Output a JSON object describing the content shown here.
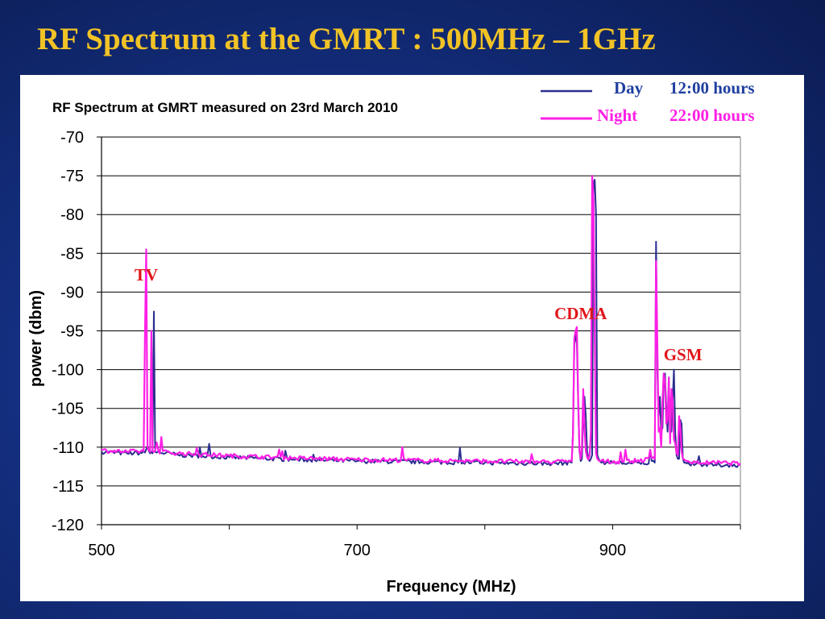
{
  "slide": {
    "title": "RF Spectrum at the GMRT : 500MHz – 1GHz"
  },
  "colors": {
    "background": "#142f80",
    "title": "#f2c326",
    "day": "#2b2f8f",
    "night": "#ff1fe6",
    "annotation": "#e0161b"
  },
  "chart_data": {
    "type": "line",
    "title": "RF Spectrum at GMRT measured on 23rd March 2010",
    "xlabel": "Frequency (MHz)",
    "ylabel": "power (dbm)",
    "xlim": [
      500,
      1000
    ],
    "ylim": [
      -120,
      -70
    ],
    "xticks": [
      500,
      700,
      900
    ],
    "yticks": [
      -70,
      -75,
      -80,
      -85,
      -90,
      -95,
      -100,
      -105,
      -110,
      -115,
      -120
    ],
    "grid": "horizontal",
    "legend": [
      {
        "name": "Day",
        "time": "12:00 hours"
      },
      {
        "name": "Night",
        "time": "22:00 hours"
      }
    ],
    "annotations": [
      {
        "text": "TV",
        "x": 535,
        "y": -88.5
      },
      {
        "text": "CDMA",
        "x": 875,
        "y": -93.5
      },
      {
        "text": "GSM",
        "x": 955,
        "y": -98.8
      }
    ],
    "series": [
      {
        "name": "Day",
        "x": [
          500,
          520,
          534,
          535,
          536,
          537,
          538,
          539,
          540,
          541,
          542,
          560,
          600,
          650,
          700,
          750,
          800,
          850,
          868,
          869,
          870,
          871,
          872,
          873,
          874,
          875,
          876,
          877,
          878,
          879,
          880,
          881,
          882,
          883,
          884,
          885,
          886,
          887,
          888,
          889,
          890,
          895,
          900,
          915,
          933,
          934,
          935,
          936,
          937,
          938,
          939,
          940,
          941,
          942,
          943,
          944,
          945,
          946,
          947,
          948,
          949,
          950,
          951,
          952,
          953,
          954,
          955,
          956,
          957,
          958,
          959,
          960,
          965,
          980,
          1000
        ],
        "y": [
          -110.6,
          -110.8,
          -110.7,
          -110.3,
          -109.8,
          -110.5,
          -110.8,
          -110.6,
          -110.8,
          -92.5,
          -110.6,
          -111.0,
          -111.3,
          -111.6,
          -111.8,
          -111.9,
          -112.0,
          -112.1,
          -112.0,
          -108.0,
          -97.0,
          -95.5,
          -96.5,
          -104.0,
          -110.5,
          -111.8,
          -111.5,
          -106.0,
          -103.5,
          -106.0,
          -110.5,
          -111.5,
          -111.8,
          -111.5,
          -111.0,
          -76.0,
          -75.5,
          -80.0,
          -111.0,
          -111.5,
          -111.8,
          -112.0,
          -112.0,
          -112.1,
          -112.0,
          -83.5,
          -100.0,
          -106.0,
          -103.5,
          -108.0,
          -107.5,
          -101.0,
          -100.5,
          -105.0,
          -108.0,
          -103.0,
          -105.0,
          -108.0,
          -104.0,
          -100.0,
          -108.0,
          -111.0,
          -111.5,
          -111.5,
          -106.5,
          -107.0,
          -111.5,
          -112.0,
          -112.0,
          -112.1,
          -112.0,
          -112.2,
          -112.2,
          -112.3,
          -112.3
        ]
      },
      {
        "name": "Night",
        "x": [
          500,
          520,
          533,
          534,
          535,
          536,
          537,
          538,
          539,
          540,
          541,
          542,
          560,
          600,
          650,
          700,
          750,
          800,
          850,
          868,
          869,
          870,
          871,
          872,
          873,
          874,
          875,
          876,
          877,
          878,
          879,
          880,
          881,
          882,
          883,
          884,
          885,
          886,
          887,
          888,
          889,
          890,
          895,
          900,
          915,
          933,
          934,
          935,
          936,
          937,
          938,
          939,
          940,
          941,
          942,
          943,
          944,
          945,
          946,
          947,
          948,
          949,
          950,
          951,
          952,
          953,
          954,
          955,
          956,
          957,
          958,
          959,
          960,
          965,
          980,
          1000
        ],
        "y": [
          -110.4,
          -110.6,
          -110.5,
          -96.0,
          -84.5,
          -110.0,
          -110.4,
          -110.6,
          -95.0,
          -110.5,
          -110.6,
          -110.5,
          -110.8,
          -111.1,
          -111.4,
          -111.6,
          -111.7,
          -111.8,
          -111.9,
          -111.8,
          -108.5,
          -96.0,
          -95.0,
          -94.5,
          -103.5,
          -110.3,
          -111.5,
          -110.0,
          -102.5,
          -107.5,
          -110.5,
          -111.3,
          -111.6,
          -111.0,
          -108.0,
          -75.0,
          -78.0,
          -96.0,
          -110.8,
          -111.5,
          -111.7,
          -111.8,
          -111.8,
          -111.9,
          -111.8,
          -111.5,
          -86.0,
          -96.5,
          -108.0,
          -107.5,
          -110.0,
          -104.0,
          -100.5,
          -101.5,
          -107.0,
          -106.5,
          -101.0,
          -109.5,
          -102.5,
          -104.0,
          -109.0,
          -109.5,
          -110.8,
          -111.0,
          -106.0,
          -107.5,
          -110.5,
          -111.5,
          -111.6,
          -111.7,
          -111.8,
          -111.8,
          -111.9,
          -112.0,
          -112.0,
          -112.1
        ]
      }
    ]
  }
}
